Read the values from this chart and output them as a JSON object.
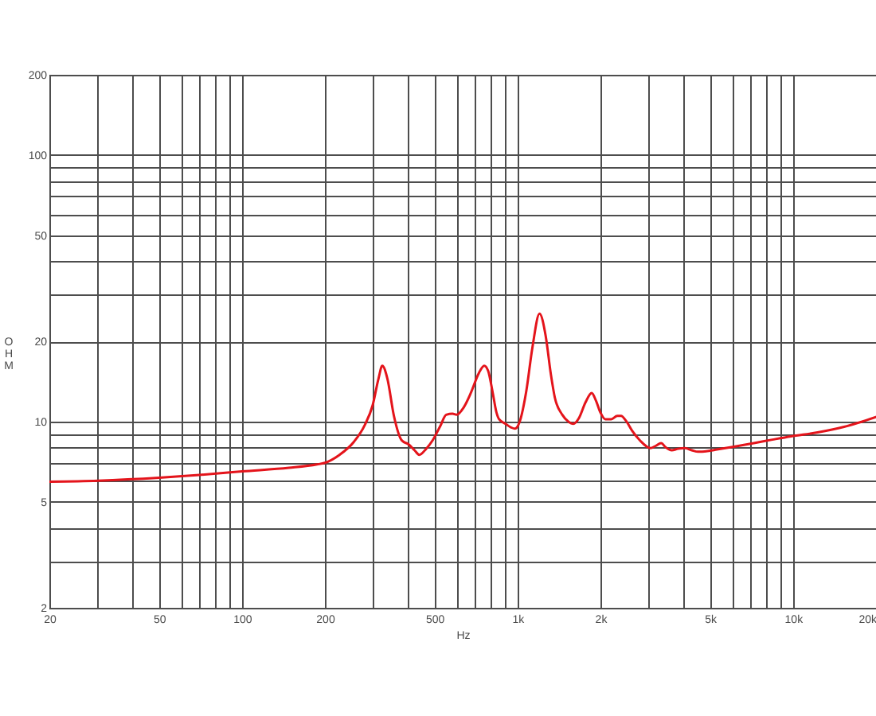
{
  "chart_data": {
    "type": "line",
    "xlabel": "Hz",
    "ylabel": "OHM",
    "log": "xy",
    "grid": true,
    "xlim": [
      20,
      20000
    ],
    "ylim": [
      2,
      200
    ],
    "xticks": [
      20,
      {
        "value": 30,
        "label": null
      },
      {
        "value": 40,
        "label": null
      },
      50,
      {
        "value": 60,
        "label": null
      },
      {
        "value": 70,
        "label": null
      },
      {
        "value": 80,
        "label": null
      },
      {
        "value": 90,
        "label": null
      },
      100,
      200,
      {
        "value": 300,
        "label": null
      },
      {
        "value": 400,
        "label": null
      },
      500,
      {
        "value": 600,
        "label": null
      },
      {
        "value": 700,
        "label": null
      },
      {
        "value": 800,
        "label": null
      },
      {
        "value": 900,
        "label": null
      },
      {
        "value": 1000,
        "label": "1k"
      },
      {
        "value": 2000,
        "label": "2k"
      },
      {
        "value": 3000,
        "label": null
      },
      {
        "value": 4000,
        "label": null
      },
      {
        "value": 5000,
        "label": "5k"
      },
      {
        "value": 6000,
        "label": null
      },
      {
        "value": 7000,
        "label": null
      },
      {
        "value": 8000,
        "label": null
      },
      {
        "value": 9000,
        "label": null
      },
      {
        "value": 10000,
        "label": "10k"
      },
      {
        "value": 20000,
        "label": "20k"
      }
    ],
    "yticks": [
      2,
      {
        "value": 3,
        "label": null
      },
      {
        "value": 4,
        "label": null
      },
      5,
      {
        "value": 6,
        "label": null
      },
      {
        "value": 7,
        "label": null
      },
      {
        "value": 8,
        "label": null
      },
      {
        "value": 9,
        "label": null
      },
      10,
      20,
      {
        "value": 30,
        "label": null
      },
      {
        "value": 40,
        "label": null
      },
      50,
      {
        "value": 60,
        "label": null
      },
      {
        "value": 70,
        "label": null
      },
      {
        "value": 80,
        "label": null
      },
      {
        "value": 90,
        "label": null
      },
      100,
      200
    ],
    "x": [
      20,
      30,
      50,
      70,
      100,
      148,
      187,
      200,
      226,
      255,
      279,
      298,
      313,
      323,
      337,
      356,
      380,
      403,
      423,
      440,
      466,
      492,
      524,
      551,
      581,
      601,
      638,
      677,
      724,
      757,
      782,
      811,
      839,
      857,
      905,
      948,
      979,
      1019,
      1076,
      1133,
      1202,
      1265,
      1322,
      1366,
      1454,
      1529,
      1594,
      1671,
      1765,
      1859,
      1925,
      2000,
      2082,
      2189,
      2301,
      2377,
      2470,
      2611,
      2780,
      3037,
      3171,
      3320,
      3451,
      3627,
      3823,
      4053,
      4291,
      4527,
      4895,
      5286,
      6099,
      7209,
      8411,
      9838,
      12271,
      15320,
      20000
    ],
    "series": [
      {
        "color": "#e4141b",
        "values": [
          5.95,
          6.0,
          6.15,
          6.3,
          6.5,
          6.7,
          6.9,
          7.0,
          7.5,
          8.4,
          9.7,
          11.5,
          14.5,
          16.2,
          14.5,
          10.5,
          8.5,
          8.2,
          7.8,
          7.5,
          7.9,
          8.5,
          9.6,
          10.6,
          10.7,
          10.6,
          11.3,
          12.8,
          15.2,
          16.2,
          15.5,
          13.0,
          10.8,
          10.2,
          9.8,
          9.5,
          9.4,
          10.0,
          13.0,
          19.0,
          25.4,
          21.0,
          15.0,
          12.3,
          10.6,
          10.0,
          9.8,
          10.3,
          11.8,
          12.8,
          12.0,
          10.8,
          10.2,
          10.2,
          10.5,
          10.5,
          10.1,
          9.2,
          8.5,
          7.95,
          8.1,
          8.3,
          8.0,
          7.8,
          7.9,
          7.95,
          7.8,
          7.7,
          7.75,
          7.85,
          8.05,
          8.3,
          8.55,
          8.8,
          9.1,
          9.55,
          10.4
        ]
      }
    ]
  }
}
